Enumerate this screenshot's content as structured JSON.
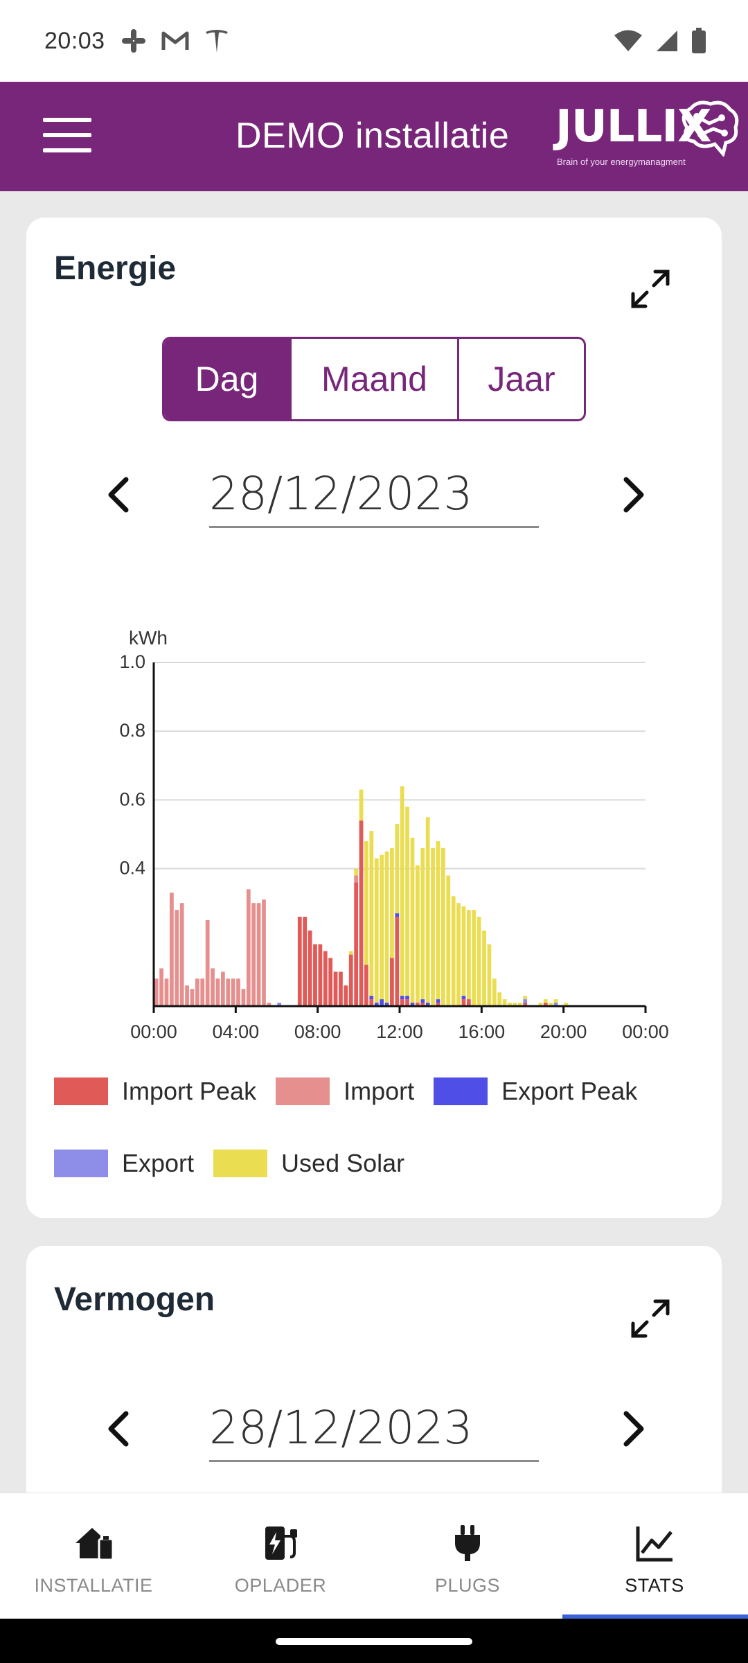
{
  "status_bar": {
    "time": "20:03",
    "left_icons": [
      "slack-icon",
      "gmail-icon",
      "tesla-icon"
    ],
    "right_icons": [
      "wifi-icon",
      "signal-icon",
      "battery-icon"
    ]
  },
  "app_bar": {
    "title": "DEMO installatie",
    "logo_text": "JULLIX",
    "logo_tagline": "Brain of your energymanagment",
    "background": "#77267a"
  },
  "energy_card": {
    "title": "Energie",
    "segments": [
      {
        "label": "Dag",
        "active": true
      },
      {
        "label": "Maand",
        "active": false
      },
      {
        "label": "Jaar",
        "active": false
      }
    ],
    "date": "28/12/2023"
  },
  "chart_data": {
    "type": "bar",
    "ylabel": "kWh",
    "ylim": [
      0,
      1.0
    ],
    "yticks": [
      "0.4",
      "0.6",
      "0.8",
      "1.0"
    ],
    "ytick_values": [
      0.4,
      0.6,
      0.8,
      1.0
    ],
    "xticks": [
      "00:00",
      "04:00",
      "08:00",
      "12:00",
      "16:00",
      "20:00",
      "00:00"
    ],
    "xlim_hours": [
      0,
      24
    ],
    "interval_minutes": 15,
    "stacked": true,
    "grid": "horizontal",
    "legend_position": "bottom",
    "series": [
      {
        "name": "Import Peak",
        "color": "#e05a57",
        "values": [
          0,
          0,
          0,
          0,
          0,
          0,
          0,
          0,
          0,
          0,
          0,
          0,
          0,
          0,
          0,
          0,
          0,
          0,
          0,
          0,
          0,
          0,
          0,
          0,
          0,
          0,
          0,
          0,
          0.26,
          0.26,
          0.22,
          0.18,
          0.18,
          0.16,
          0.14,
          0.1,
          0.1,
          0.06,
          0.15,
          0.36,
          0.54,
          0.12,
          0.02,
          0,
          0,
          0,
          0.14,
          0.26,
          0.02,
          0.02,
          0,
          0.01,
          0.01,
          0,
          0,
          0.01,
          0,
          0,
          0,
          0,
          0.02,
          0.02,
          0,
          0,
          0,
          0,
          0,
          0,
          0,
          0,
          0,
          0,
          0.01,
          0,
          0,
          0,
          0.01,
          0,
          0,
          0,
          0,
          0,
          0,
          0,
          0,
          0,
          0,
          0,
          0,
          0,
          0,
          0,
          0,
          0,
          0,
          0
        ]
      },
      {
        "name": "Import",
        "color": "#e5908e",
        "values": [
          0.08,
          0.11,
          0.08,
          0.33,
          0.28,
          0.3,
          0.06,
          0.05,
          0.08,
          0.08,
          0.25,
          0.11,
          0.08,
          0.1,
          0.08,
          0.08,
          0.08,
          0.05,
          0.34,
          0.3,
          0.3,
          0.31,
          0.01,
          0,
          0,
          0,
          0,
          0,
          0,
          0,
          0,
          0,
          0,
          0,
          0,
          0,
          0,
          0,
          0,
          0.02,
          0,
          0,
          0,
          0,
          0,
          0,
          0,
          0,
          0,
          0,
          0,
          0,
          0,
          0,
          0,
          0,
          0,
          0,
          0,
          0,
          0,
          0,
          0,
          0,
          0,
          0,
          0,
          0,
          0,
          0,
          0,
          0,
          0,
          0,
          0,
          0,
          0,
          0,
          0,
          0,
          0,
          0,
          0,
          0,
          0,
          0,
          0,
          0,
          0,
          0,
          0,
          0,
          0,
          0,
          0,
          0
        ]
      },
      {
        "name": "Export Peak",
        "color": "#4f4ee6",
        "values": [
          0,
          0,
          0,
          0,
          0,
          0,
          0,
          0,
          0,
          0,
          0,
          0,
          0,
          0,
          0,
          0,
          0,
          0,
          0,
          0,
          0,
          0,
          0,
          0,
          0,
          0,
          0,
          0,
          0,
          0,
          0,
          0,
          0,
          0,
          0,
          0,
          0,
          0,
          0,
          0,
          0,
          0,
          0.01,
          0.01,
          0.02,
          0.01,
          0,
          0.01,
          0.01,
          0.01,
          0.01,
          0,
          0.01,
          0.01,
          0,
          0.01,
          0,
          0,
          0,
          0,
          0.01,
          0,
          0,
          0,
          0,
          0,
          0,
          0,
          0,
          0,
          0,
          0,
          0,
          0,
          0,
          0,
          0,
          0,
          0,
          0,
          0,
          0,
          0,
          0,
          0,
          0,
          0,
          0,
          0,
          0,
          0,
          0,
          0,
          0,
          0,
          0
        ]
      },
      {
        "name": "Export",
        "color": "#8e8de8",
        "values": [
          0,
          0,
          0,
          0,
          0,
          0,
          0,
          0,
          0,
          0,
          0,
          0,
          0,
          0,
          0,
          0,
          0,
          0,
          0,
          0,
          0,
          0,
          0,
          0,
          0.01,
          0,
          0,
          0,
          0,
          0,
          0,
          0,
          0,
          0,
          0,
          0,
          0,
          0,
          0,
          0,
          0,
          0,
          0,
          0,
          0,
          0,
          0,
          0,
          0,
          0,
          0,
          0,
          0,
          0,
          0,
          0,
          0,
          0,
          0,
          0,
          0,
          0,
          0,
          0,
          0,
          0,
          0,
          0,
          0,
          0,
          0,
          0,
          0.01,
          0,
          0,
          0,
          0,
          0,
          0.01,
          0,
          0,
          0,
          0,
          0,
          0,
          0,
          0,
          0,
          0,
          0,
          0,
          0,
          0,
          0,
          0,
          0
        ]
      },
      {
        "name": "Used Solar",
        "color": "#ebdd52",
        "values": [
          0,
          0,
          0,
          0,
          0,
          0,
          0,
          0,
          0,
          0,
          0,
          0,
          0,
          0,
          0,
          0,
          0,
          0,
          0,
          0,
          0,
          0,
          0,
          0,
          0,
          0,
          0,
          0,
          0,
          0,
          0,
          0,
          0,
          0,
          0,
          0,
          0,
          0,
          0.01,
          0.02,
          0.09,
          0.36,
          0.48,
          0.42,
          0.42,
          0.44,
          0.32,
          0.26,
          0.61,
          0.55,
          0.48,
          0.4,
          0.44,
          0.54,
          0.46,
          0.46,
          0.46,
          0.38,
          0.32,
          0.3,
          0.26,
          0.26,
          0.28,
          0.26,
          0.22,
          0.18,
          0.08,
          0.04,
          0.02,
          0.01,
          0.01,
          0.01,
          0.01,
          0,
          0,
          0.01,
          0.01,
          0.01,
          0.01,
          0,
          0.01,
          0,
          0,
          0,
          0,
          0,
          0,
          0,
          0,
          0,
          0,
          0,
          0,
          0,
          0,
          0
        ]
      }
    ]
  },
  "power_card": {
    "title": "Vermogen",
    "date": "28/12/2023"
  },
  "bottom_nav": {
    "items": [
      {
        "label": "INSTALLATIE",
        "icon": "house-battery-icon",
        "active": false
      },
      {
        "label": "OPLADER",
        "icon": "ev-charger-icon",
        "active": false
      },
      {
        "label": "PLUGS",
        "icon": "plug-icon",
        "active": false
      },
      {
        "label": "STATS",
        "icon": "chart-line-icon",
        "active": true
      }
    ],
    "active_color": "#3a63d6"
  }
}
